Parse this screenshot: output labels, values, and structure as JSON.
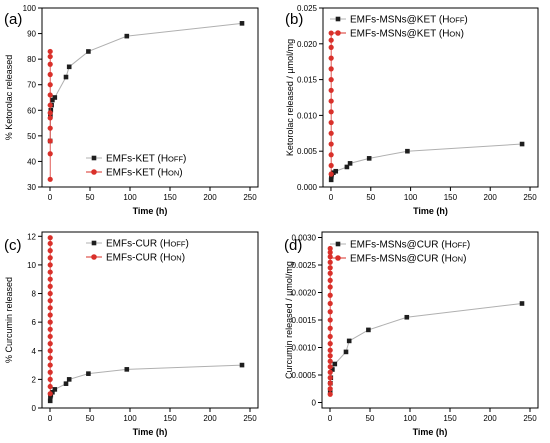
{
  "colors": {
    "off": "#1e1e1e",
    "on": "#d9302a",
    "connector": "#b0b0b0"
  },
  "chart_data": [
    {
      "panel": "(a)",
      "type": "scatter",
      "xlabel": "Time (h)",
      "ylabel": "% Ketorolac released",
      "xlim": [
        -10,
        260
      ],
      "ylim": [
        30,
        100
      ],
      "xticks": [
        0,
        50,
        100,
        150,
        200,
        250
      ],
      "xtick_labels": [
        "0",
        "50",
        "100",
        "150",
        "200",
        "250"
      ],
      "yticks": [
        30,
        40,
        50,
        60,
        70,
        80,
        90,
        100
      ],
      "ytick_labels": [
        "30",
        "40",
        "50",
        "60",
        "70",
        "80",
        "90",
        "100"
      ],
      "legend_position": "lower-right",
      "series": [
        {
          "name": "EMFs-KET (HOFF)",
          "marker": "square",
          "line": true,
          "x": [
            0.25,
            0.5,
            1,
            2,
            3,
            6,
            20,
            24,
            48,
            96,
            240
          ],
          "y": [
            48,
            58,
            60,
            62,
            64,
            65,
            73,
            77,
            83,
            89,
            94
          ]
        },
        {
          "name": "EMFs-KET (HON)",
          "marker": "circle",
          "line": true,
          "x": [
            0.25,
            0.25,
            0.25,
            0.25,
            0.25,
            0.25,
            0.25,
            0.25,
            0.25,
            0.25,
            0.25,
            0.25,
            0.25
          ],
          "y": [
            33,
            43,
            48,
            53,
            57,
            59,
            62,
            66,
            70,
            74,
            78,
            81,
            83
          ]
        }
      ]
    },
    {
      "panel": "(b)",
      "type": "scatter",
      "xlabel": "Time (h)",
      "ylabel": "Ketorolac released / µmol/mg",
      "xlim": [
        -10,
        260
      ],
      "ylim": [
        0,
        0.025
      ],
      "xticks": [
        0,
        50,
        100,
        150,
        200,
        250
      ],
      "xtick_labels": [
        "0",
        "50",
        "100",
        "150",
        "200",
        "250"
      ],
      "yticks": [
        0,
        0.005,
        0.01,
        0.015,
        0.02,
        0.025
      ],
      "ytick_labels": [
        "0.000",
        "0.005",
        "0.010",
        "0.015",
        "0.020",
        "0.025"
      ],
      "legend_position": "top-right",
      "series": [
        {
          "name": "EMFs-MSNs@KET (HOFF)",
          "marker": "square",
          "line": true,
          "x": [
            0.25,
            0.5,
            1,
            3,
            6,
            20,
            24,
            48,
            96,
            240
          ],
          "y": [
            0.001,
            0.0015,
            0.0018,
            0.002,
            0.0022,
            0.0028,
            0.0033,
            0.004,
            0.005,
            0.006
          ]
        },
        {
          "name": "EMFs-MSNs@KET (HON)",
          "marker": "circle",
          "line": true,
          "x": [
            0.25,
            0.25,
            0.25,
            0.25,
            0.25,
            0.25,
            0.25,
            0.25,
            0.25,
            0.25,
            0.25,
            0.25,
            0.25,
            0.25,
            0.25
          ],
          "y": [
            0.0018,
            0.003,
            0.0045,
            0.006,
            0.0075,
            0.009,
            0.0105,
            0.012,
            0.0135,
            0.015,
            0.0165,
            0.018,
            0.0195,
            0.0205,
            0.0215
          ]
        }
      ]
    },
    {
      "panel": "(c)",
      "type": "scatter",
      "xlabel": "Time (h)",
      "ylabel": "% Curcumin released",
      "xlim": [
        -10,
        260
      ],
      "ylim": [
        0,
        12.3
      ],
      "xticks": [
        0,
        50,
        100,
        150,
        200,
        250
      ],
      "xtick_labels": [
        "0",
        "50",
        "100",
        "150",
        "200",
        "250"
      ],
      "yticks": [
        0,
        2,
        4,
        6,
        8,
        10,
        12
      ],
      "ytick_labels": [
        "0",
        "2",
        "4",
        "6",
        "8",
        "10",
        "12"
      ],
      "legend_position": "top-right",
      "series": [
        {
          "name": "EMFs-CUR (HOFF)",
          "marker": "square",
          "line": true,
          "x": [
            0.25,
            0.5,
            1,
            3,
            6,
            20,
            24,
            48,
            96,
            240
          ],
          "y": [
            0.5,
            0.8,
            0.9,
            1.1,
            1.3,
            1.7,
            2.0,
            2.4,
            2.7,
            3.0
          ]
        },
        {
          "name": "EMFs-CUR (HON)",
          "marker": "circle",
          "line": true,
          "x": [
            0.25,
            0.25,
            0.25,
            0.25,
            0.25,
            0.25,
            0.25,
            0.25,
            0.25,
            0.25,
            0.25,
            0.25,
            0.25,
            0.25,
            0.25,
            0.25,
            0.25,
            0.25,
            0.25,
            0.25,
            0.25,
            0.25,
            0.25
          ],
          "y": [
            1.0,
            1.5,
            2.0,
            2.5,
            3.0,
            3.5,
            4.0,
            4.5,
            5.0,
            5.5,
            6.0,
            6.5,
            7.0,
            7.5,
            8.0,
            8.5,
            9.0,
            9.5,
            10.0,
            10.5,
            11.0,
            11.5,
            11.9
          ]
        }
      ]
    },
    {
      "panel": "(d)",
      "type": "scatter",
      "xlabel": "Time (h)",
      "ylabel": "Curcumin released / µmol/mg",
      "xlim": [
        -10,
        260
      ],
      "ylim": [
        -0.0001,
        0.0031
      ],
      "xticks": [
        0,
        50,
        100,
        150,
        200,
        250
      ],
      "xtick_labels": [
        "0",
        "50",
        "100",
        "150",
        "200",
        "250"
      ],
      "yticks": [
        0,
        0.0005,
        0.001,
        0.0015,
        0.002,
        0.0025,
        0.003
      ],
      "ytick_labels": [
        "0",
        "0.0005",
        "0.0010",
        "0.0015",
        "0.0020",
        "0.0025",
        "0.0030"
      ],
      "legend_position": "top-right",
      "series": [
        {
          "name": "EMFs-MSNs@CUR (HOFF)",
          "marker": "square",
          "line": true,
          "x": [
            0.25,
            0.5,
            1,
            3,
            6,
            20,
            24,
            48,
            96,
            240
          ],
          "y": [
            0.0002,
            0.00035,
            0.00045,
            0.0006,
            0.0007,
            0.00092,
            0.00112,
            0.00132,
            0.00155,
            0.0018
          ]
        },
        {
          "name": "EMFs-MSNs@CUR (HON)",
          "marker": "circle",
          "line": true,
          "x": [
            0.25,
            0.25,
            0.25,
            0.25,
            0.25,
            0.25,
            0.25,
            0.25,
            0.25,
            0.25,
            0.25,
            0.25,
            0.25,
            0.25,
            0.25,
            0.25,
            0.25,
            0.25,
            0.25,
            0.25,
            0.25,
            0.25,
            0.25,
            0.25
          ],
          "y": [
            0.00015,
            0.00025,
            0.00035,
            0.00045,
            0.00055,
            0.00065,
            0.00075,
            0.00085,
            0.00095,
            0.00107,
            0.0012,
            0.00135,
            0.0015,
            0.00165,
            0.0018,
            0.00195,
            0.0021,
            0.00222,
            0.00235,
            0.00245,
            0.00255,
            0.00265,
            0.00273,
            0.0028
          ]
        }
      ]
    }
  ]
}
